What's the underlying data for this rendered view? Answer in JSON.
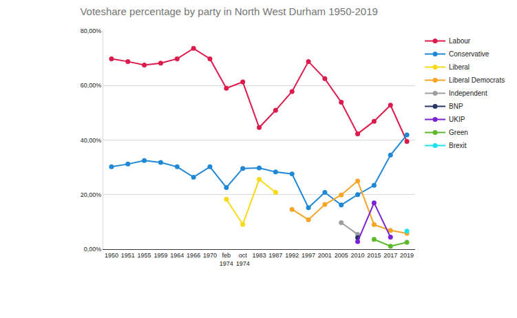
{
  "chart_data": {
    "type": "line",
    "title": "Voteshare percentage by party in North West Durham 1950-2019",
    "categories": [
      "1950",
      "1951",
      "1955",
      "1959",
      "1964",
      "1966",
      "1970",
      "feb 1974",
      "oct 1974",
      "1983",
      "1987",
      "1992",
      "1997",
      "2001",
      "2005",
      "2010",
      "2015",
      "2017",
      "2019"
    ],
    "series": [
      {
        "name": "Labour",
        "color": "#dc1a4b",
        "values": [
          69.8,
          68.8,
          67.5,
          68.2,
          69.8,
          73.6,
          69.8,
          59.0,
          61.3,
          44.6,
          50.9,
          57.8,
          68.8,
          62.5,
          53.9,
          42.3,
          46.9,
          52.8,
          39.5
        ]
      },
      {
        "name": "Conservative",
        "color": "#1f88d6",
        "values": [
          30.2,
          31.2,
          32.5,
          31.8,
          30.2,
          26.4,
          30.2,
          22.6,
          29.6,
          29.8,
          28.3,
          27.6,
          15.2,
          20.8,
          16.2,
          20.0,
          23.4,
          34.5,
          41.9
        ]
      },
      {
        "name": "Liberal",
        "color": "#f7d916",
        "values": [
          null,
          null,
          null,
          null,
          null,
          null,
          null,
          18.3,
          9.1,
          25.6,
          20.8,
          null,
          null,
          null,
          null,
          null,
          null,
          null,
          null
        ]
      },
      {
        "name": "Liberal Democrats",
        "color": "#f6a626",
        "values": [
          null,
          null,
          null,
          null,
          null,
          null,
          null,
          null,
          null,
          null,
          null,
          14.6,
          10.8,
          16.4,
          19.9,
          25.0,
          9.0,
          6.9,
          5.8
        ]
      },
      {
        "name": "Independent",
        "color": "#9e9e9e",
        "values": [
          null,
          null,
          null,
          null,
          null,
          null,
          null,
          null,
          null,
          null,
          null,
          null,
          null,
          null,
          9.7,
          5.4,
          null,
          null,
          null
        ]
      },
      {
        "name": "BNP",
        "color": "#283567",
        "values": [
          null,
          null,
          null,
          null,
          null,
          null,
          null,
          null,
          null,
          null,
          null,
          null,
          null,
          null,
          null,
          4.2,
          null,
          null,
          null
        ]
      },
      {
        "name": "UKIP",
        "color": "#7b22d4",
        "values": [
          null,
          null,
          null,
          null,
          null,
          null,
          null,
          null,
          null,
          null,
          null,
          null,
          null,
          null,
          null,
          2.8,
          17.0,
          4.4,
          null
        ]
      },
      {
        "name": "Green",
        "color": "#5db92c",
        "values": [
          null,
          null,
          null,
          null,
          null,
          null,
          null,
          null,
          null,
          null,
          null,
          null,
          null,
          null,
          null,
          null,
          3.6,
          1.1,
          2.5
        ]
      },
      {
        "name": "Brexit",
        "color": "#1ae2ef",
        "values": [
          null,
          null,
          null,
          null,
          null,
          null,
          null,
          null,
          null,
          null,
          null,
          null,
          null,
          null,
          null,
          null,
          null,
          null,
          6.6
        ]
      }
    ],
    "ylim": [
      0,
      80
    ],
    "yticks": [
      {
        "value": 0,
        "label": "0,00%"
      },
      {
        "value": 20,
        "label": "20,00%"
      },
      {
        "value": 40,
        "label": "40,00%"
      },
      {
        "value": 60,
        "label": "60,00%"
      },
      {
        "value": 80,
        "label": "80,00%"
      }
    ],
    "grid": true,
    "legend": "right",
    "marker": "circle"
  }
}
